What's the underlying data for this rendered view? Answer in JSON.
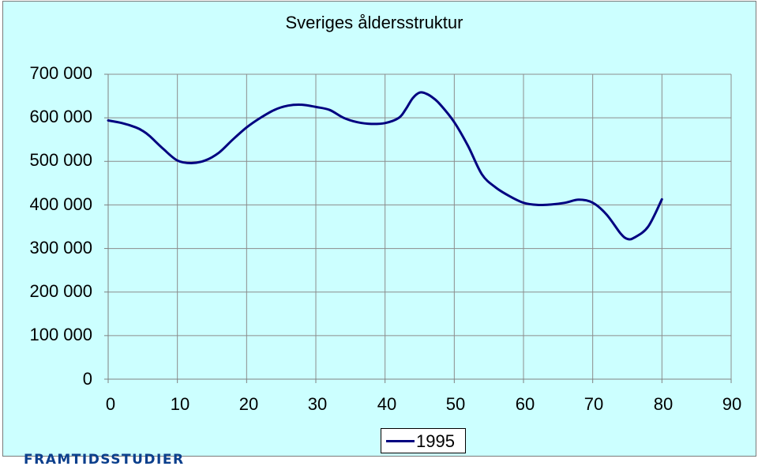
{
  "chart_data": {
    "type": "line",
    "title": "Sveriges åldersstruktur",
    "xlabel": "",
    "ylabel": "",
    "xlim": [
      0,
      90
    ],
    "ylim": [
      0,
      700000
    ],
    "x_ticks": [
      "0",
      "10",
      "20",
      "30",
      "40",
      "50",
      "60",
      "70",
      "80",
      "90"
    ],
    "y_ticks": [
      "0",
      "100 000",
      "200 000",
      "300 000",
      "400 000",
      "500 000",
      "600 000",
      "700 000"
    ],
    "grid": true,
    "legend_position": "bottom-center",
    "series": [
      {
        "name": "1995",
        "color": "#000080",
        "points": [
          [
            0,
            594000
          ],
          [
            2,
            588000
          ],
          [
            4,
            578000
          ],
          [
            5,
            570000
          ],
          [
            6,
            558000
          ],
          [
            8,
            528000
          ],
          [
            10,
            502000
          ],
          [
            12,
            496000
          ],
          [
            14,
            502000
          ],
          [
            16,
            520000
          ],
          [
            18,
            550000
          ],
          [
            20,
            578000
          ],
          [
            22,
            600000
          ],
          [
            24,
            618000
          ],
          [
            26,
            628000
          ],
          [
            28,
            630000
          ],
          [
            30,
            625000
          ],
          [
            32,
            618000
          ],
          [
            34,
            600000
          ],
          [
            36,
            590000
          ],
          [
            38,
            586000
          ],
          [
            40,
            588000
          ],
          [
            42,
            600000
          ],
          [
            43,
            620000
          ],
          [
            44,
            645000
          ],
          [
            45,
            658000
          ],
          [
            46,
            655000
          ],
          [
            47,
            645000
          ],
          [
            48,
            630000
          ],
          [
            50,
            590000
          ],
          [
            52,
            535000
          ],
          [
            54,
            470000
          ],
          [
            56,
            440000
          ],
          [
            58,
            420000
          ],
          [
            60,
            405000
          ],
          [
            62,
            400000
          ],
          [
            64,
            401000
          ],
          [
            66,
            405000
          ],
          [
            68,
            412000
          ],
          [
            70,
            405000
          ],
          [
            72,
            378000
          ],
          [
            74,
            335000
          ],
          [
            75,
            322000
          ],
          [
            76,
            325000
          ],
          [
            78,
            350000
          ],
          [
            80,
            413000
          ]
        ]
      }
    ]
  },
  "footer": {
    "logo_text": "FRAMTIDSSTUDIER"
  }
}
